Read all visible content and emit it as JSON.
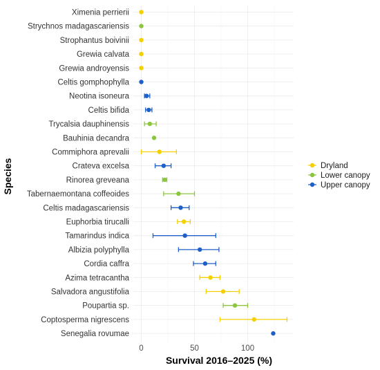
{
  "chart_data": {
    "type": "scatter",
    "subtype": "point-range (dot plot with error bars)",
    "title": "",
    "xlabel": "Survival 2016–2025 (%)",
    "ylabel": "Species",
    "xlim": [
      -5,
      142
    ],
    "x_ticks": [
      0,
      50,
      100
    ],
    "grid": true,
    "legend_position": "right",
    "series": [
      {
        "name": "Dryland",
        "color": "#f5d000"
      },
      {
        "name": "Lower canopy",
        "color": "#8cc63f"
      },
      {
        "name": "Upper canopy",
        "color": "#1f5fc8"
      }
    ],
    "categories": [
      "Ximenia perrierii",
      "Strychnos madagascariensis",
      "Strophantus boivinii",
      "Grewia calvata",
      "Grewia androyensis",
      "Celtis gomphophylla",
      "Neotina isoneura",
      "Celtis bifida",
      "Trycalsia dauphinensis",
      "Bauhinia decandra",
      "Commiphora aprevalii",
      "Crateva excelsa",
      "Rinorea greveana",
      "Tabernaemontana coffeoides",
      "Celtis madagascariensis",
      "Euphorbia tirucalli",
      "Tamarindus indica",
      "Albizia polyphylla",
      "Cordia caffra",
      "Azima tetracantha",
      "Salvadora angustifolia",
      "Poupartia sp.",
      "Coptosperma nigrescens",
      "Senegalia rovumae"
    ],
    "points": [
      {
        "species": "Ximenia perrierii",
        "group": "Dryland",
        "value": 0,
        "lower": 0,
        "upper": 0
      },
      {
        "species": "Strychnos madagascariensis",
        "group": "Lower canopy",
        "value": 0,
        "lower": 0,
        "upper": 0
      },
      {
        "species": "Strophantus boivinii",
        "group": "Dryland",
        "value": 0,
        "lower": 0,
        "upper": 0
      },
      {
        "species": "Grewia calvata",
        "group": "Dryland",
        "value": 0,
        "lower": 0,
        "upper": 0
      },
      {
        "species": "Grewia androyensis",
        "group": "Dryland",
        "value": 0,
        "lower": 0,
        "upper": 0
      },
      {
        "species": "Celtis gomphophylla",
        "group": "Upper canopy",
        "value": 0,
        "lower": 0,
        "upper": 0
      },
      {
        "species": "Neotina isoneura",
        "group": "Upper canopy",
        "value": 5,
        "lower": 3,
        "upper": 8
      },
      {
        "species": "Celtis bifida",
        "group": "Upper canopy",
        "value": 7,
        "lower": 4,
        "upper": 10
      },
      {
        "species": "Trycalsia dauphinensis",
        "group": "Lower canopy",
        "value": 8,
        "lower": 3,
        "upper": 14
      },
      {
        "species": "Bauhinia decandra",
        "group": "Lower canopy",
        "value": 12,
        "lower": 12,
        "upper": 12
      },
      {
        "species": "Commiphora aprevalii",
        "group": "Dryland",
        "value": 17,
        "lower": 0,
        "upper": 33
      },
      {
        "species": "Crateva excelsa",
        "group": "Upper canopy",
        "value": 21,
        "lower": 13,
        "upper": 28
      },
      {
        "species": "Rinorea greveana",
        "group": "Lower canopy",
        "value": 22,
        "lower": 20,
        "upper": 24
      },
      {
        "species": "Tabernaemontana coffeoides",
        "group": "Lower canopy",
        "value": 35,
        "lower": 21,
        "upper": 50
      },
      {
        "species": "Celtis madagascariensis",
        "group": "Upper canopy",
        "value": 37,
        "lower": 28,
        "upper": 45
      },
      {
        "species": "Euphorbia tirucalli",
        "group": "Dryland",
        "value": 40,
        "lower": 34,
        "upper": 46
      },
      {
        "species": "Tamarindus indica",
        "group": "Upper canopy",
        "value": 41,
        "lower": 11,
        "upper": 70
      },
      {
        "species": "Albizia polyphylla",
        "group": "Upper canopy",
        "value": 55,
        "lower": 35,
        "upper": 73
      },
      {
        "species": "Cordia caffra",
        "group": "Upper canopy",
        "value": 60,
        "lower": 49,
        "upper": 70
      },
      {
        "species": "Azima tetracantha",
        "group": "Dryland",
        "value": 65,
        "lower": 55,
        "upper": 74
      },
      {
        "species": "Salvadora angustifolia",
        "group": "Dryland",
        "value": 77,
        "lower": 61,
        "upper": 92
      },
      {
        "species": "Poupartia sp.",
        "group": "Lower canopy",
        "value": 88,
        "lower": 77,
        "upper": 100
      },
      {
        "species": "Coptosperma nigrescens",
        "group": "Dryland",
        "value": 106,
        "lower": 74,
        "upper": 137
      },
      {
        "species": "Senegalia rovumae",
        "group": "Upper canopy",
        "value": 124,
        "lower": 124,
        "upper": 124
      }
    ]
  }
}
